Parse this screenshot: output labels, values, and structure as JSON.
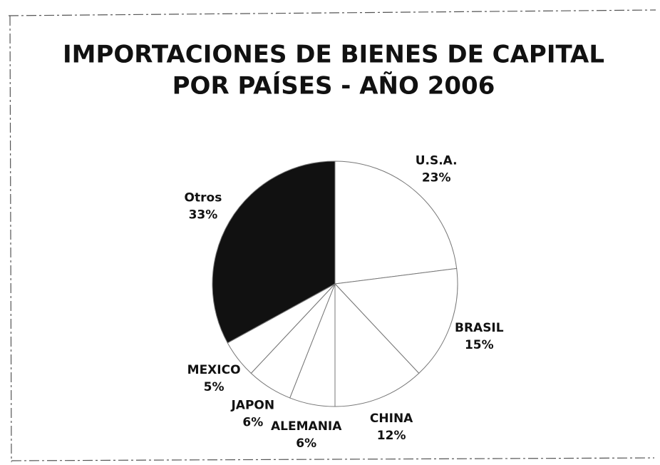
{
  "chart_data": {
    "type": "pie",
    "title": [
      "IMPORTACIONES DE BIENES DE CAPITAL",
      "POR PAÍSES - AÑO 2006"
    ],
    "categories": [
      "U.S.A.",
      "BRASIL",
      "CHINA",
      "ALEMANIA",
      "JAPON",
      "MEXICO",
      "Otros"
    ],
    "values": [
      23,
      15,
      12,
      6,
      6,
      5,
      33
    ],
    "value_labels": [
      "23%",
      "15%",
      "12%",
      "6%",
      "6%",
      "5%",
      "33%"
    ],
    "colors": [
      "#ffffff",
      "#ffffff",
      "#ffffff",
      "#ffffff",
      "#ffffff",
      "#ffffff",
      "#111111"
    ]
  }
}
